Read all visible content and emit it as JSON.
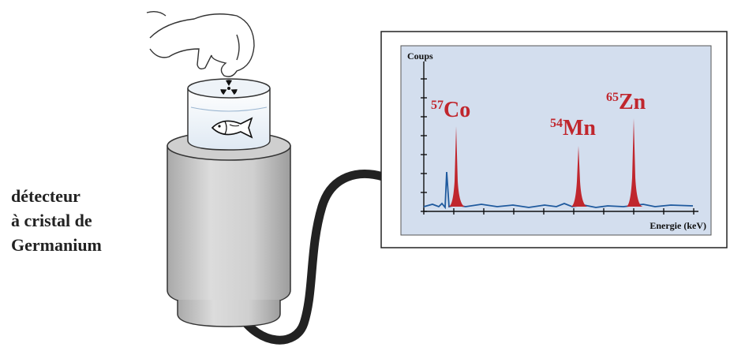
{
  "detector_label": {
    "lines": [
      "détecteur",
      "à cristal de",
      "Germanium"
    ]
  },
  "spectrum": {
    "y_axis_label": "Coups",
    "x_axis_label": "Energie (keV)",
    "peaks": [
      {
        "isotope_mass": "57",
        "isotope_symbol": "Co"
      },
      {
        "isotope_mass": "54",
        "isotope_symbol": "Mn"
      },
      {
        "isotope_mass": "65",
        "isotope_symbol": "Zn"
      }
    ]
  },
  "colors": {
    "screen_background": "#d3deee",
    "peak_fill": "#c0262d",
    "baseline_line": "#1f5a9e",
    "detector_body": "#c9c9c9",
    "cable": "#222222"
  },
  "icons": [
    "radiation-icon",
    "fish-icon",
    "hand-icon"
  ]
}
